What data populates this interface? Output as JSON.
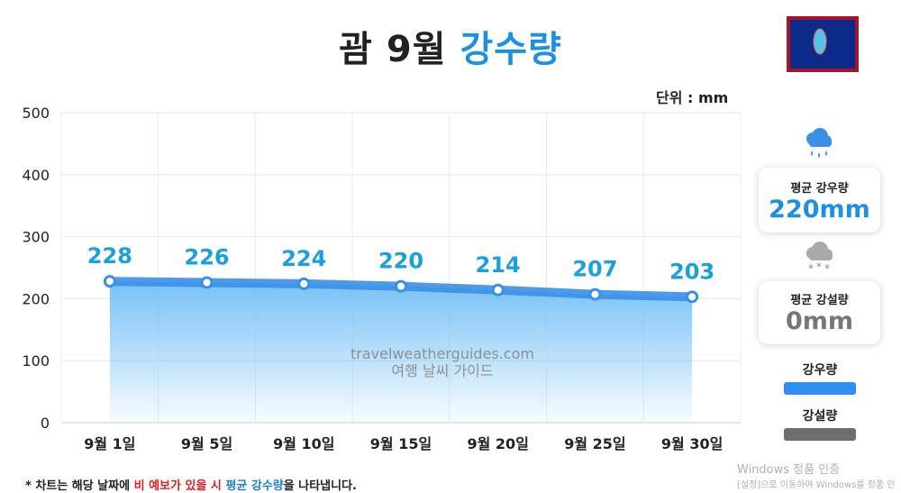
{
  "header": {
    "title_plain": "괌 9월 ",
    "title_accent": "강수량",
    "unit": "단위 : mm"
  },
  "chart_data": {
    "type": "area",
    "categories": [
      "9월 1일",
      "9월 5일",
      "9월 10일",
      "9월 15일",
      "9월 20일",
      "9월 25일",
      "9월 30일"
    ],
    "values": [
      228,
      226,
      224,
      220,
      214,
      207,
      203
    ],
    "data_labels": [
      "228",
      "226",
      "224",
      "220",
      "214",
      "207",
      "203"
    ],
    "y_ticks": [
      "0",
      "100",
      "200",
      "300",
      "400",
      "500"
    ],
    "ylim": [
      0,
      500
    ],
    "grid": true,
    "colors": {
      "line": "#3a8fe8",
      "point": "#3a8fe8",
      "label": "#1aa0dc",
      "fill_top": "#6fbef5"
    }
  },
  "side": {
    "rain_card": {
      "label": "평균 강우량",
      "value": "220mm",
      "color": "#1e90e0"
    },
    "snow_card": {
      "label": "평균 강설량",
      "value": "0mm",
      "color": "#777777"
    },
    "legend": [
      {
        "label": "강우량",
        "color": "#2d8ff0"
      },
      {
        "label": "강설량",
        "color": "#6e6e6e"
      }
    ],
    "icons": [
      "rain-cloud-icon",
      "snow-cloud-icon"
    ]
  },
  "footnote": {
    "prefix": "* 차트는 해당 날짜에 ",
    "highlight_red": "비 예보가 있을 시",
    "space": " ",
    "highlight_blue": "평균 강수량",
    "suffix": "을 나타냅니다."
  },
  "watermark": {
    "line1": "travelweatherguides.com",
    "line2": "여행 날씨 가이드"
  },
  "windows_overlay": {
    "line1": "Windows 정품 인증",
    "line2": "[설정]으로 이동하여 Windows를 정품 인"
  }
}
